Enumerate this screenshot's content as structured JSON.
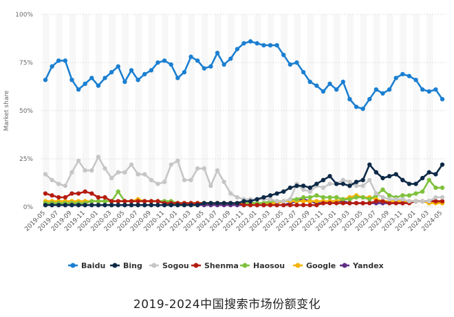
{
  "caption": "2019-2024中国搜索市场份额变化",
  "chart_data": {
    "type": "line",
    "ylabel": "Market share",
    "ylim": [
      0,
      100
    ],
    "yticks": [
      0,
      25,
      50,
      75,
      100
    ],
    "ytick_labels": [
      "0%",
      "25%",
      "50%",
      "75%",
      "100%"
    ],
    "grid": true,
    "legend_position": "bottom",
    "x": [
      "2019-05",
      "2019-06",
      "2019-07",
      "2019-08",
      "2019-09",
      "2019-10",
      "2019-11",
      "2019-12",
      "2020-01",
      "2020-02",
      "2020-03",
      "2020-04",
      "2020-05",
      "2020-06",
      "2020-07",
      "2020-08",
      "2020-09",
      "2020-10",
      "2020-11",
      "2020-12",
      "2021-01",
      "2021-02",
      "2021-03",
      "2021-04",
      "2021-05",
      "2021-06",
      "2021-07",
      "2021-08",
      "2021-09",
      "2021-10",
      "2021-11",
      "2021-12",
      "2022-01",
      "2022-02",
      "2022-03",
      "2022-04",
      "2022-05",
      "2022-06",
      "2022-07",
      "2022-08",
      "2022-09",
      "2022-10",
      "2022-11",
      "2022-12",
      "2023-01",
      "2023-02",
      "2023-03",
      "2023-04",
      "2023-05",
      "2023-06",
      "2023-07",
      "2023-08",
      "2023-09",
      "2023-10",
      "2023-11",
      "2023-12",
      "2024-01",
      "2024-02",
      "2024-03",
      "2024-04",
      "2024-05"
    ],
    "xtick_labels": [
      "2019-05",
      "2019-07",
      "2019-09",
      "2019-11",
      "2020-01",
      "2020-03",
      "2020-05",
      "2020-07",
      "2020-09",
      "2020-11",
      "2021-01",
      "2021-03",
      "2021-05",
      "2021-07",
      "2021-09",
      "2021-11",
      "2022-01",
      "2022-03",
      "2022-05",
      "2022-07",
      "2022-09",
      "2022-11",
      "2023-01",
      "2023-03",
      "2023-05",
      "2023-07",
      "2023-09",
      "2023-11",
      "2024-01",
      "2024-03",
      "2024-05"
    ],
    "series": [
      {
        "name": "Baidu",
        "color": "#1b7fd1",
        "values": [
          66,
          73,
          76,
          76,
          66,
          61,
          64,
          67,
          63,
          67,
          70,
          73,
          65,
          71,
          66,
          69,
          71,
          75,
          76,
          74,
          67,
          70,
          78,
          76,
          72,
          73,
          80,
          74,
          77,
          82,
          85,
          86,
          85,
          84,
          84,
          84,
          79,
          74,
          75,
          70,
          65,
          63,
          60,
          64,
          61,
          65,
          56,
          52,
          51,
          56,
          61,
          59,
          61,
          67,
          69,
          68,
          66,
          61,
          60,
          61,
          56
        ]
      },
      {
        "name": "Bing",
        "color": "#0e2a47",
        "values": [
          1,
          1,
          1,
          1,
          1,
          1,
          1,
          1,
          1,
          1,
          1,
          1,
          1,
          1,
          1,
          1,
          1,
          1,
          1,
          1,
          1,
          1,
          1,
          1,
          2,
          2,
          2,
          2,
          2,
          2,
          3,
          3,
          4,
          5,
          6,
          7,
          8,
          10,
          11,
          11,
          10,
          12,
          14,
          16,
          12,
          12,
          11,
          13,
          14,
          22,
          18,
          15,
          16,
          17,
          14,
          12,
          12,
          15,
          18,
          17,
          22
        ]
      },
      {
        "name": "Sogou",
        "color": "#c6c6c6",
        "values": [
          17,
          14,
          12,
          11,
          18,
          24,
          19,
          19,
          26,
          20,
          15,
          18,
          18,
          22,
          17,
          17,
          14,
          12,
          13,
          22,
          24,
          14,
          14,
          20,
          20,
          11,
          19,
          13,
          7,
          5,
          4,
          4,
          4,
          4,
          4,
          3,
          3,
          4,
          12,
          9,
          8,
          11,
          10,
          12,
          12,
          14,
          13,
          11,
          11,
          14,
          7,
          5,
          4,
          4,
          4,
          3,
          3,
          3,
          3,
          5,
          5
        ]
      },
      {
        "name": "Shenma",
        "color": "#b51c10",
        "values": [
          7,
          6,
          5,
          5,
          7,
          7,
          8,
          7,
          5,
          5,
          3,
          3,
          3,
          3,
          3,
          3,
          3,
          3,
          2,
          2,
          2,
          2,
          2,
          2,
          2,
          2,
          2,
          2,
          2,
          2,
          1,
          1,
          1,
          1,
          1,
          1,
          1,
          1,
          1,
          1,
          1,
          1,
          2,
          2,
          2,
          2,
          2,
          2,
          2,
          2,
          3,
          3,
          2,
          2,
          2,
          2,
          3,
          3,
          3,
          3,
          3
        ]
      },
      {
        "name": "Haosou",
        "color": "#7fc13d",
        "values": [
          2,
          2,
          2,
          2,
          2,
          2,
          2,
          3,
          3,
          3,
          3,
          8,
          3,
          3,
          3,
          3,
          3,
          3,
          3,
          3,
          2,
          2,
          2,
          2,
          2,
          2,
          2,
          2,
          2,
          2,
          2,
          2,
          2,
          2,
          3,
          3,
          3,
          4,
          4,
          5,
          5,
          6,
          5,
          5,
          5,
          4,
          4,
          5,
          5,
          4,
          6,
          9,
          6,
          5,
          6,
          6,
          7,
          8,
          14,
          10,
          10
        ]
      },
      {
        "name": "Google",
        "color": "#f5b400",
        "values": [
          3,
          3,
          3,
          3,
          3,
          3,
          3,
          3,
          3,
          3,
          3,
          3,
          3,
          3,
          4,
          3,
          3,
          3,
          3,
          2,
          2,
          2,
          2,
          2,
          2,
          2,
          2,
          2,
          2,
          2,
          2,
          2,
          2,
          2,
          2,
          2,
          3,
          3,
          3,
          3,
          3,
          3,
          3,
          3,
          3,
          4,
          5,
          6,
          5,
          5,
          4,
          3,
          3,
          3,
          3,
          3,
          3,
          3,
          2,
          2,
          2
        ]
      },
      {
        "name": "Yandex",
        "color": "#5f2d86",
        "values": [
          1,
          1,
          1,
          1,
          1,
          1,
          1,
          1,
          1,
          1,
          1,
          1,
          1,
          1,
          1,
          1,
          1,
          1,
          1,
          1,
          1,
          1,
          1,
          1,
          1,
          1,
          1,
          1,
          1,
          1,
          1,
          1,
          1,
          1,
          1,
          1,
          1,
          2,
          3,
          4,
          3,
          2,
          2,
          3,
          3,
          3,
          2,
          2,
          2,
          2,
          2,
          2,
          2,
          2,
          2,
          3,
          3,
          3,
          3,
          3,
          2
        ]
      }
    ]
  }
}
